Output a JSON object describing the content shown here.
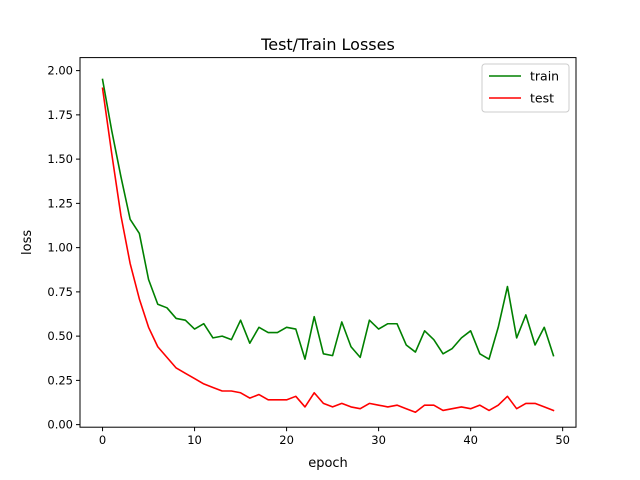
{
  "chart_data": {
    "type": "line",
    "title": "Test/Train Losses",
    "xlabel": "epoch",
    "ylabel": "loss",
    "xlim": [
      -2.45,
      51.45
    ],
    "ylim": [
      -0.0145,
      2.0735
    ],
    "xticks": [
      0,
      10,
      20,
      30,
      40,
      50
    ],
    "yticks": [
      0.0,
      0.25,
      0.5,
      0.75,
      1.0,
      1.25,
      1.5,
      1.75,
      2.0
    ],
    "ytick_labels": [
      "0.00",
      "0.25",
      "0.50",
      "0.75",
      "1.00",
      "1.25",
      "1.50",
      "1.75",
      "2.00"
    ],
    "grid": false,
    "legend_position": "top-right",
    "x": [
      0,
      1,
      2,
      3,
      4,
      5,
      6,
      7,
      8,
      9,
      10,
      11,
      12,
      13,
      14,
      15,
      16,
      17,
      18,
      19,
      20,
      21,
      22,
      23,
      24,
      25,
      26,
      27,
      28,
      29,
      30,
      31,
      32,
      33,
      34,
      35,
      36,
      37,
      38,
      39,
      40,
      41,
      42,
      43,
      44,
      45,
      46,
      47,
      48,
      49
    ],
    "series": [
      {
        "name": "train",
        "color": "#008000",
        "values": [
          1.95,
          1.66,
          1.4,
          1.16,
          1.08,
          0.82,
          0.68,
          0.66,
          0.6,
          0.59,
          0.54,
          0.57,
          0.49,
          0.5,
          0.48,
          0.59,
          0.46,
          0.55,
          0.52,
          0.52,
          0.55,
          0.54,
          0.37,
          0.61,
          0.4,
          0.39,
          0.58,
          0.44,
          0.38,
          0.59,
          0.54,
          0.57,
          0.57,
          0.45,
          0.41,
          0.53,
          0.48,
          0.4,
          0.43,
          0.49,
          0.53,
          0.4,
          0.37,
          0.55,
          0.78,
          0.49,
          0.62,
          0.45,
          0.55,
          0.39
        ]
      },
      {
        "name": "test",
        "color": "#ff0000",
        "values": [
          1.9,
          1.53,
          1.18,
          0.91,
          0.71,
          0.55,
          0.44,
          0.38,
          0.32,
          0.29,
          0.26,
          0.23,
          0.21,
          0.19,
          0.19,
          0.18,
          0.15,
          0.17,
          0.14,
          0.14,
          0.14,
          0.16,
          0.1,
          0.18,
          0.12,
          0.1,
          0.12,
          0.1,
          0.09,
          0.12,
          0.11,
          0.1,
          0.11,
          0.09,
          0.07,
          0.11,
          0.11,
          0.08,
          0.09,
          0.1,
          0.09,
          0.11,
          0.08,
          0.11,
          0.16,
          0.09,
          0.12,
          0.12,
          0.1,
          0.08
        ]
      }
    ]
  }
}
